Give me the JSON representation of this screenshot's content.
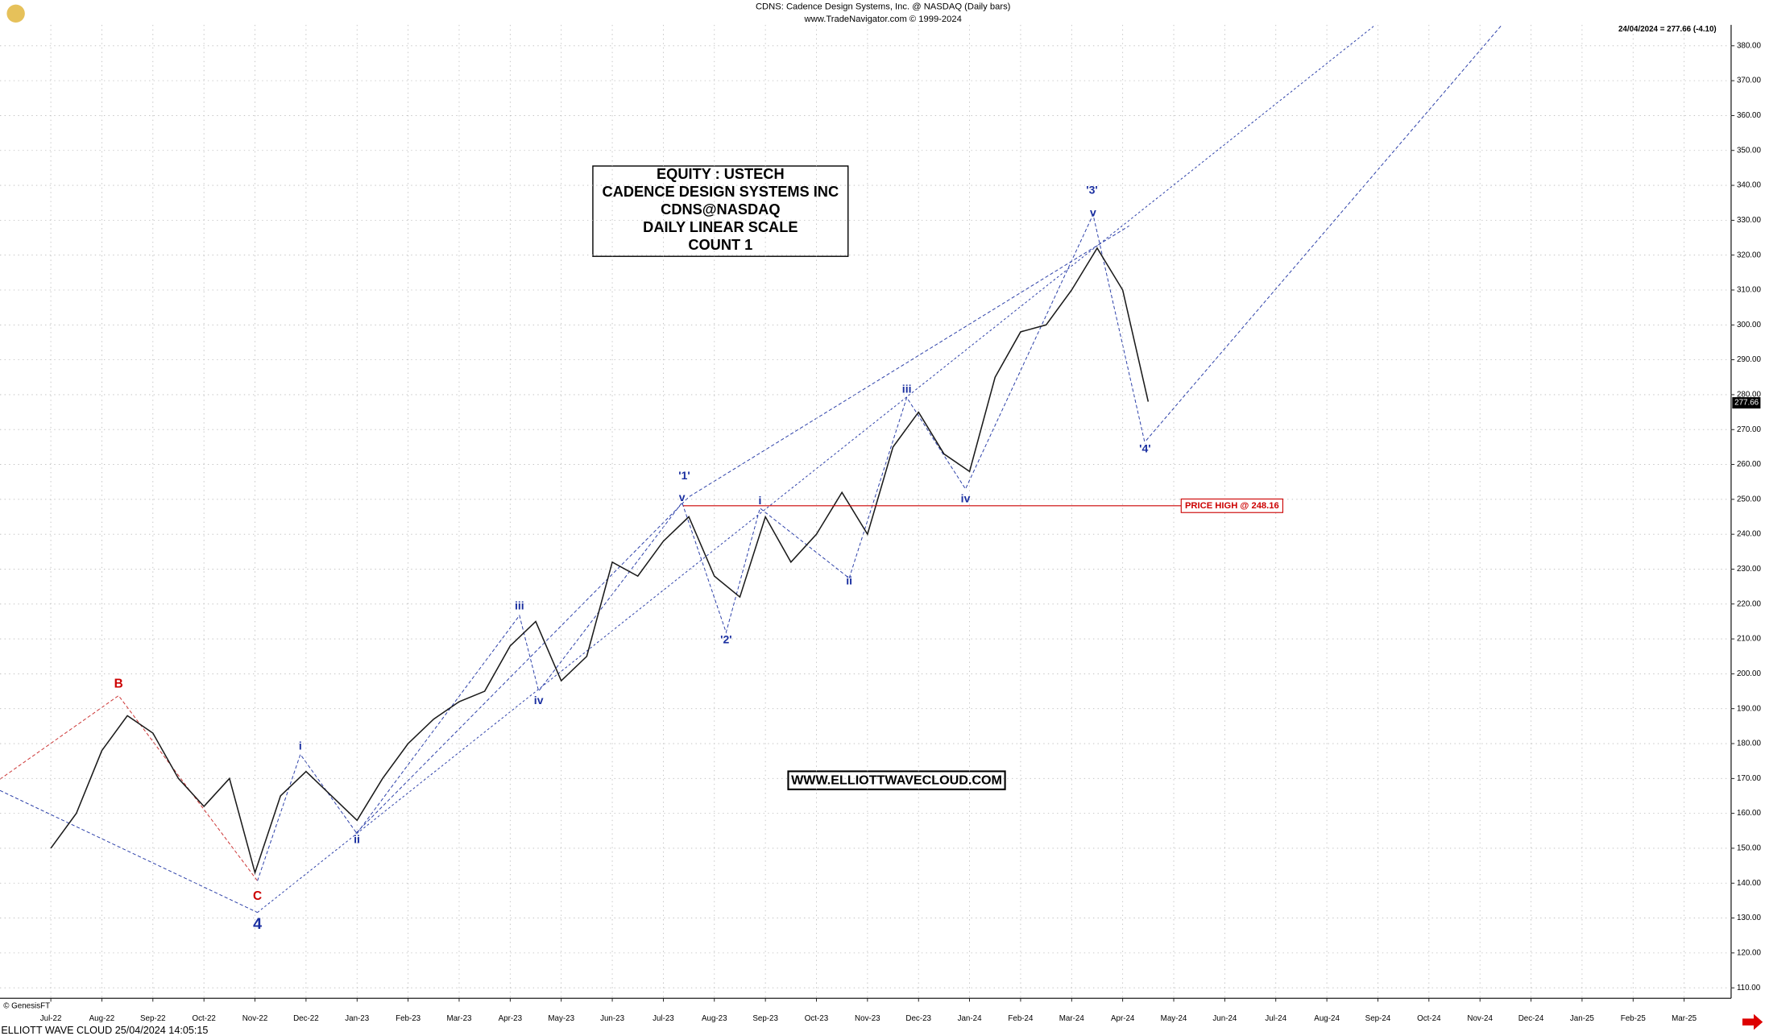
{
  "header": {
    "title": "CDNS:  Cadence Design Systems, Inc. @ NASDAQ  (Daily bars)",
    "subtitle": "www.TradeNavigator.com © 1999-2024",
    "last_quote": "24/04/2024 = 277.66 (-4.10)",
    "credit": "© GenesisFT",
    "footer": "ELLIOTT WAVE CLOUD   25/04/2024 14:05:15"
  },
  "chart_data": {
    "type": "line",
    "info_box": [
      "EQUITY : USTECH",
      "CADENCE DESIGN SYSTEMS INC",
      "CDNS@NASDAQ",
      "DAILY LINEAR SCALE",
      "COUNT 1"
    ],
    "website": "WWW.ELLIOTTWAVECLOUD.COM",
    "price_high": {
      "label": "PRICE HIGH @ 248.16",
      "value": 248.16,
      "color": "#cc0000"
    },
    "last_price": {
      "value": 277.66,
      "label": "277.66"
    },
    "wave_labels": [
      "B",
      "C",
      "4",
      "i",
      "ii",
      "iii",
      "iv",
      "'1'",
      "v",
      "'2'",
      "i",
      "ii",
      "iii",
      "iv",
      "'3'",
      "v",
      "'4'"
    ],
    "categories": [
      "Jul-22",
      null,
      "Aug-22",
      null,
      "Sep-22",
      null,
      "Oct-22",
      null,
      "Nov-22",
      null,
      "Dec-22",
      null,
      "Jan-23",
      null,
      "Feb-23",
      null,
      "Mar-23",
      null,
      "Apr-23",
      null,
      "May-23",
      null,
      "Jun-23",
      null,
      "Jul-23",
      null,
      "Aug-23",
      null,
      "Sep-23",
      null,
      "Oct-23",
      null,
      "Nov-23",
      null,
      "Dec-23",
      null,
      "Jan-24",
      null,
      "Feb-24",
      null,
      "Mar-24",
      null,
      "Apr-24",
      null,
      "May-24",
      null,
      "Jun-24",
      null,
      "Jul-24",
      null,
      "Aug-24",
      null,
      "Sep-24",
      null,
      "Oct-24",
      null,
      "Nov-24",
      null,
      "Dec-24",
      null,
      "Jan-25",
      null,
      "Feb-25",
      null,
      "Mar-25",
      null
    ],
    "series": [
      {
        "name": "CDNS",
        "color": "#1a1a1a",
        "values": [
          150,
          160,
          178,
          188,
          183,
          170,
          162,
          170,
          143,
          165,
          172,
          165,
          158,
          170,
          180,
          187,
          192,
          195,
          208,
          215,
          198,
          205,
          232,
          228,
          238,
          245,
          228,
          222,
          245,
          232,
          240,
          252,
          240,
          265,
          275,
          263,
          258,
          285,
          298,
          300,
          310,
          322,
          310,
          278,
          null,
          null,
          null,
          null,
          null,
          null,
          null,
          null,
          null,
          null,
          null,
          null,
          null,
          null,
          null,
          null,
          null,
          null,
          null,
          null,
          null,
          null
        ]
      }
    ],
    "ylim": [
      107,
      386
    ],
    "yticks": [
      {
        "value": 110,
        "label": "110.00"
      },
      {
        "value": 120,
        "label": "120.00"
      },
      {
        "value": 130,
        "label": "130.00"
      },
      {
        "value": 140,
        "label": "140.00"
      },
      {
        "value": 150,
        "label": "150.00"
      },
      {
        "value": 160,
        "label": "160.00"
      },
      {
        "value": 170,
        "label": "170.00"
      },
      {
        "value": 180,
        "label": "180.00"
      },
      {
        "value": 190,
        "label": "190.00"
      },
      {
        "value": 200,
        "label": "200.00"
      },
      {
        "value": 210,
        "label": "210.00"
      },
      {
        "value": 220,
        "label": "220.00"
      },
      {
        "value": 230,
        "label": "230.00"
      },
      {
        "value": 240,
        "label": "240.00"
      },
      {
        "value": 250,
        "label": "250.00"
      },
      {
        "value": 260,
        "label": "260.00"
      },
      {
        "value": 270,
        "label": "270.00"
      },
      {
        "value": 280,
        "label": "280.00"
      },
      {
        "value": 290,
        "label": "290.00"
      },
      {
        "value": 300,
        "label": "300.00"
      },
      {
        "value": 310,
        "label": "310.00"
      },
      {
        "value": 320,
        "label": "320.00"
      },
      {
        "value": 330,
        "label": "330.00"
      },
      {
        "value": 340,
        "label": "340.00"
      },
      {
        "value": 350,
        "label": "350.00"
      },
      {
        "value": 360,
        "label": "360.00"
      },
      {
        "value": 370,
        "label": "370.00"
      },
      {
        "value": 380,
        "label": "380.00"
      }
    ],
    "grid": true
  }
}
